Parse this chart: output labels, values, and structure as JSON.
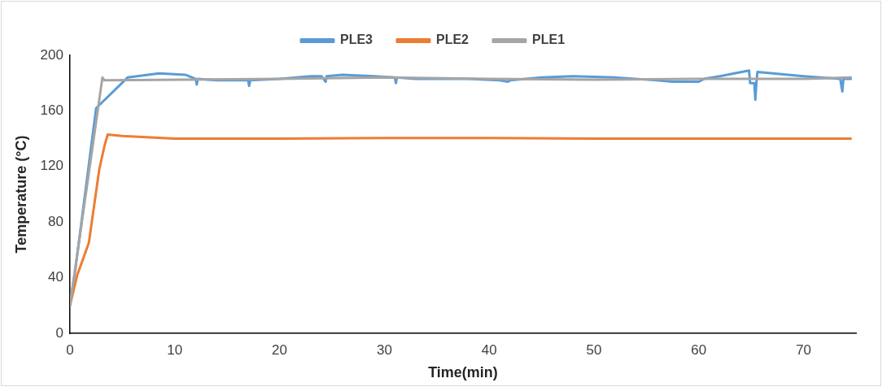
{
  "chart_data": {
    "type": "line",
    "xlabel": "Time(min)",
    "ylabel": "Temperature (°C)",
    "xlim": [
      0,
      75
    ],
    "xticks": [
      0,
      10,
      20,
      30,
      40,
      50,
      60,
      70
    ],
    "ylim": [
      0,
      200
    ],
    "yticks": [
      0,
      40,
      80,
      120,
      160,
      200
    ],
    "grid": false,
    "legend": "top",
    "marker": "none",
    "line_style": "solid",
    "series": [
      {
        "name": "PLE3",
        "color": "#5b9bd5",
        "x": [
          0,
          0.5,
          2.5,
          5.5,
          8.5,
          11,
          12,
          12.1,
          12.2,
          14,
          17,
          17.1,
          17.2,
          20,
          23,
          24,
          24.4,
          24.5,
          26,
          29,
          31,
          31.1,
          31.2,
          33,
          35,
          38,
          41,
          41.8,
          42,
          45,
          48,
          52,
          56,
          57.5,
          60,
          60.5,
          62,
          64.8,
          64.9,
          65.3,
          65.4,
          65.5,
          65.6,
          70,
          73.5,
          73.7,
          73.8,
          74.5
        ],
        "values": [
          20,
          45,
          162,
          184,
          187,
          186,
          183,
          179,
          183,
          182,
          182,
          178,
          182,
          183,
          185,
          185,
          181,
          185,
          186,
          185,
          184,
          180,
          184,
          183,
          183,
          183,
          182,
          181,
          182,
          184,
          185,
          184,
          182,
          181,
          181,
          183,
          185,
          189,
          180,
          180,
          168,
          180,
          188,
          185,
          183,
          174,
          183,
          183
        ]
      },
      {
        "name": "PLE2",
        "color": "#ed7d31",
        "x": [
          0,
          0.7,
          1.8,
          2.8,
          3.3,
          3.6,
          5,
          10,
          20,
          30,
          40,
          50,
          60,
          74.5
        ],
        "values": [
          20,
          42,
          65,
          118,
          135,
          143,
          142,
          140,
          140,
          140.5,
          140.5,
          140,
          140,
          140
        ]
      },
      {
        "name": "PLE1",
        "color": "#a5a5a5",
        "x": [
          0,
          3.1,
          3.3,
          20,
          30,
          40,
          50,
          60,
          70,
          74.5
        ],
        "values": [
          20,
          184,
          182,
          183,
          184,
          183,
          182.5,
          183,
          183,
          184
        ]
      }
    ]
  }
}
